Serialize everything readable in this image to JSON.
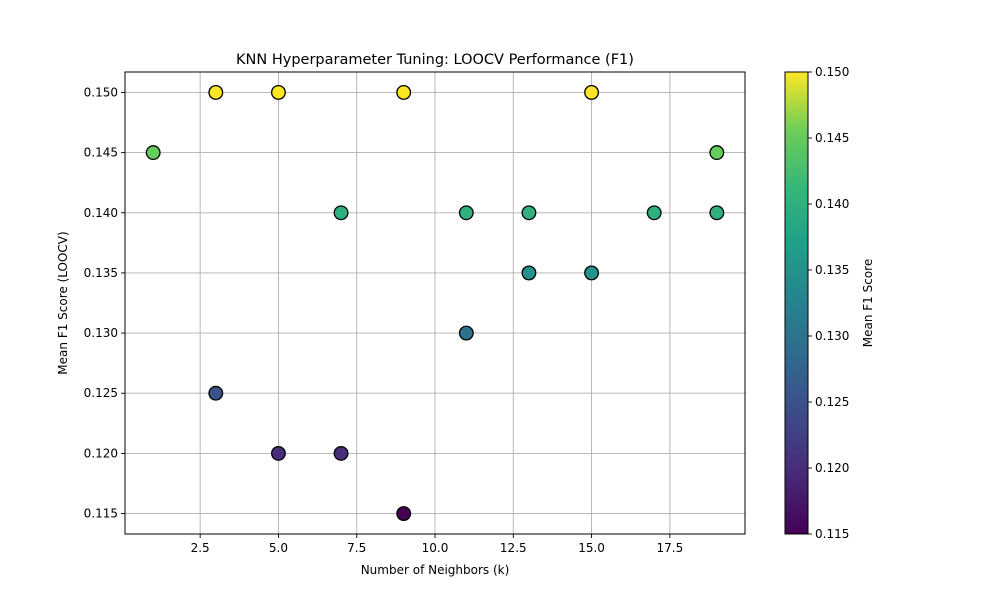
{
  "chart_data": {
    "type": "scatter",
    "title": "KNN Hyperparameter Tuning: LOOCV Performance (F1)",
    "xlabel": "Number of Neighbors (k)",
    "ylabel": "Mean F1 Score (LOOCV)",
    "xlim": [
      0.1,
      19.9
    ],
    "ylim": [
      0.1133,
      0.1517
    ],
    "xticks": [
      2.5,
      5.0,
      7.5,
      10.0,
      12.5,
      15.0,
      17.5
    ],
    "xtick_labels": [
      "2.5",
      "5.0",
      "7.5",
      "10.0",
      "12.5",
      "15.0",
      "17.5"
    ],
    "yticks": [
      0.115,
      0.12,
      0.125,
      0.13,
      0.135,
      0.14,
      0.145,
      0.15
    ],
    "ytick_labels": [
      "0.115",
      "0.120",
      "0.125",
      "0.130",
      "0.135",
      "0.140",
      "0.145",
      "0.150"
    ],
    "grid": true,
    "colormap": "viridis",
    "points": [
      {
        "x": 1,
        "y": 0.145
      },
      {
        "x": 3,
        "y": 0.15
      },
      {
        "x": 3,
        "y": 0.125
      },
      {
        "x": 5,
        "y": 0.15
      },
      {
        "x": 5,
        "y": 0.12
      },
      {
        "x": 7,
        "y": 0.14
      },
      {
        "x": 7,
        "y": 0.12
      },
      {
        "x": 9,
        "y": 0.15
      },
      {
        "x": 9,
        "y": 0.115
      },
      {
        "x": 11,
        "y": 0.14
      },
      {
        "x": 11,
        "y": 0.13
      },
      {
        "x": 13,
        "y": 0.14
      },
      {
        "x": 13,
        "y": 0.135
      },
      {
        "x": 15,
        "y": 0.15
      },
      {
        "x": 15,
        "y": 0.135
      },
      {
        "x": 17,
        "y": 0.14
      },
      {
        "x": 19,
        "y": 0.145
      },
      {
        "x": 19,
        "y": 0.14
      }
    ],
    "colorbar": {
      "label": "Mean F1 Score",
      "range": [
        0.115,
        0.15
      ],
      "ticks": [
        0.115,
        0.12,
        0.125,
        0.13,
        0.135,
        0.14,
        0.145,
        0.15
      ],
      "tick_labels": [
        "0.115",
        "0.120",
        "0.125",
        "0.130",
        "0.135",
        "0.140",
        "0.145",
        "0.150"
      ]
    }
  }
}
